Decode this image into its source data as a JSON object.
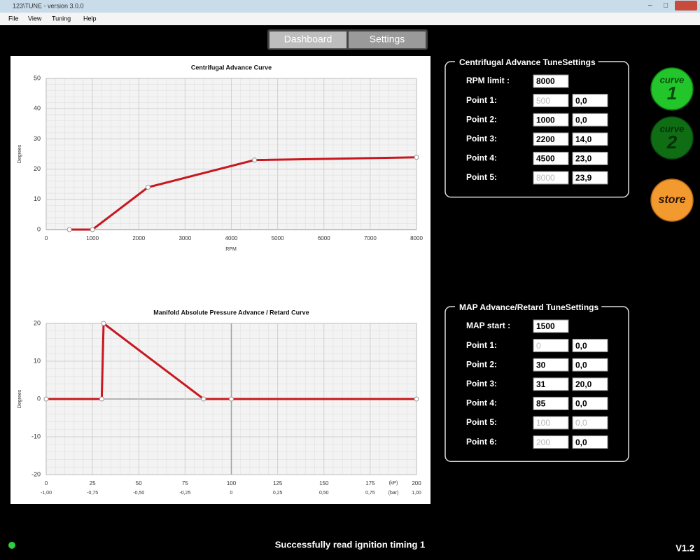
{
  "window": {
    "title": "123\\TUNE - version 3.0.0",
    "menu": [
      "File",
      "View",
      "Tuning",
      "Help"
    ]
  },
  "tabs": [
    "Dashboard",
    "Settings"
  ],
  "chart_data": [
    {
      "type": "line",
      "title": "Centrifugal Advance Curve",
      "ylabel": "Degrees",
      "xlabel": "RPM",
      "x": [
        500,
        1000,
        2200,
        4500,
        8000
      ],
      "values": [
        0,
        0,
        14,
        23,
        23.9
      ],
      "color": "#c8171e",
      "xlim": [
        0,
        8000
      ],
      "xticks": [
        0,
        1000,
        2000,
        3000,
        4000,
        5000,
        6000,
        7000,
        8000
      ],
      "ylim": [
        0,
        50
      ],
      "yticks": [
        0,
        10,
        20,
        30,
        40,
        50
      ],
      "grid": true
    },
    {
      "type": "line",
      "title": "Manifold Absolute Pressure Advance / Retard Curve",
      "ylabel": "Degrees",
      "xlabel": "(kP)",
      "x2label": "(bar)",
      "x": [
        0,
        30,
        31,
        85,
        100,
        200
      ],
      "values": [
        0,
        0,
        20,
        0,
        0,
        0
      ],
      "color": "#c8171e",
      "xlim": [
        0,
        200
      ],
      "xticks": [
        0,
        25,
        50,
        75,
        100,
        125,
        150,
        175,
        200
      ],
      "x2lim": [
        -1,
        1
      ],
      "x2ticks": [
        {
          "value": -1,
          "label": "-1,00"
        },
        {
          "value": -0.75,
          "label": "-0,75"
        },
        {
          "value": -0.5,
          "label": "-0,50"
        },
        {
          "value": -0.25,
          "label": "-0,25"
        },
        0,
        {
          "value": 0.25,
          "label": "0,25"
        },
        {
          "value": 0.5,
          "label": "0,50"
        },
        {
          "value": 0.75,
          "label": "0,75"
        },
        {
          "value": 1,
          "label": "1,00"
        }
      ],
      "ylim": [
        -20,
        20
      ],
      "yticks": [
        -20,
        -10,
        0,
        10,
        20
      ],
      "grid": true
    }
  ],
  "settings_panels": [
    {
      "title": "Centrifugal Advance TuneSettings",
      "rows": [
        {
          "label": "RPM limit :",
          "inputs": [
            {
              "text": "8000",
              "disabled": false
            }
          ]
        },
        {
          "label": "Point 1:",
          "inputs": [
            {
              "text": "500",
              "disabled": true
            },
            {
              "text": "0,0",
              "disabled": false
            }
          ]
        },
        {
          "label": "Point 2:",
          "inputs": [
            {
              "text": "1000",
              "disabled": false
            },
            {
              "text": "0,0",
              "disabled": false
            }
          ]
        },
        {
          "label": "Point 3:",
          "inputs": [
            {
              "text": "2200",
              "disabled": false
            },
            {
              "text": "14,0",
              "disabled": false
            }
          ]
        },
        {
          "label": "Point 4:",
          "inputs": [
            {
              "text": "4500",
              "disabled": false
            },
            {
              "text": "23,0",
              "disabled": false
            }
          ]
        },
        {
          "label": "Point 5:",
          "inputs": [
            {
              "text": "8000",
              "disabled": true
            },
            {
              "text": "23,9",
              "disabled": false
            }
          ]
        }
      ]
    },
    {
      "title": "MAP Advance/Retard TuneSettings",
      "rows": [
        {
          "label": "MAP start :",
          "inputs": [
            {
              "text": "1500",
              "disabled": false
            }
          ]
        },
        {
          "label": "Point 1:",
          "inputs": [
            {
              "text": "0",
              "disabled": true
            },
            {
              "text": "0,0",
              "disabled": false
            }
          ]
        },
        {
          "label": "Point 2:",
          "inputs": [
            {
              "text": "30",
              "disabled": false
            },
            {
              "text": "0,0",
              "disabled": false
            }
          ]
        },
        {
          "label": "Point 3:",
          "inputs": [
            {
              "text": "31",
              "disabled": false
            },
            {
              "text": "20,0",
              "disabled": false
            }
          ]
        },
        {
          "label": "Point 4:",
          "inputs": [
            {
              "text": "85",
              "disabled": false
            },
            {
              "text": "0,0",
              "disabled": false
            }
          ]
        },
        {
          "label": "Point 5:",
          "inputs": [
            {
              "text": "100",
              "disabled": true
            },
            {
              "text": "0,0",
              "disabled": true
            }
          ]
        },
        {
          "label": "Point 6:",
          "inputs": [
            {
              "text": "200",
              "disabled": true
            },
            {
              "text": "0,0",
              "disabled": false
            }
          ]
        }
      ]
    }
  ],
  "buttons": [
    {
      "word": "curve",
      "number": "1"
    },
    {
      "word": "curve",
      "number": "2"
    },
    {
      "word": "store"
    }
  ],
  "status": {
    "message": "Successfully read ignition timing 1",
    "version": "V1.2"
  }
}
